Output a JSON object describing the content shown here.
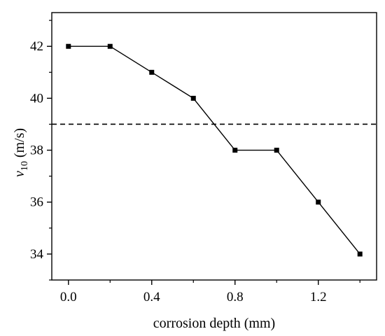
{
  "chart_data": {
    "type": "line",
    "title": "",
    "xlabel": "corrosion depth (mm)",
    "ylabel": {
      "symbol": "v",
      "subscript": "10",
      "unit": " (m/s)"
    },
    "xlim": [
      -0.08,
      1.48
    ],
    "ylim": [
      33,
      43.3
    ],
    "x_ticks": [
      0.0,
      0.4,
      0.8,
      1.2
    ],
    "x_tick_labels": [
      "0.0",
      "0.4",
      "0.8",
      "1.2"
    ],
    "y_ticks": [
      34,
      36,
      38,
      40,
      42
    ],
    "y_tick_labels": [
      "34",
      "36",
      "38",
      "40",
      "42"
    ],
    "grid": false,
    "legend": "none",
    "series": [
      {
        "x": [
          0.0,
          0.2,
          0.4,
          0.6,
          0.8,
          1.0,
          1.2,
          1.4
        ],
        "y": [
          42,
          42,
          41,
          40,
          38,
          38,
          36,
          34
        ],
        "color": "#000000",
        "marker": "square"
      }
    ],
    "reference_lines": [
      {
        "orientation": "horizontal",
        "y": 39,
        "style": "dashed",
        "color": "#000000"
      }
    ]
  }
}
